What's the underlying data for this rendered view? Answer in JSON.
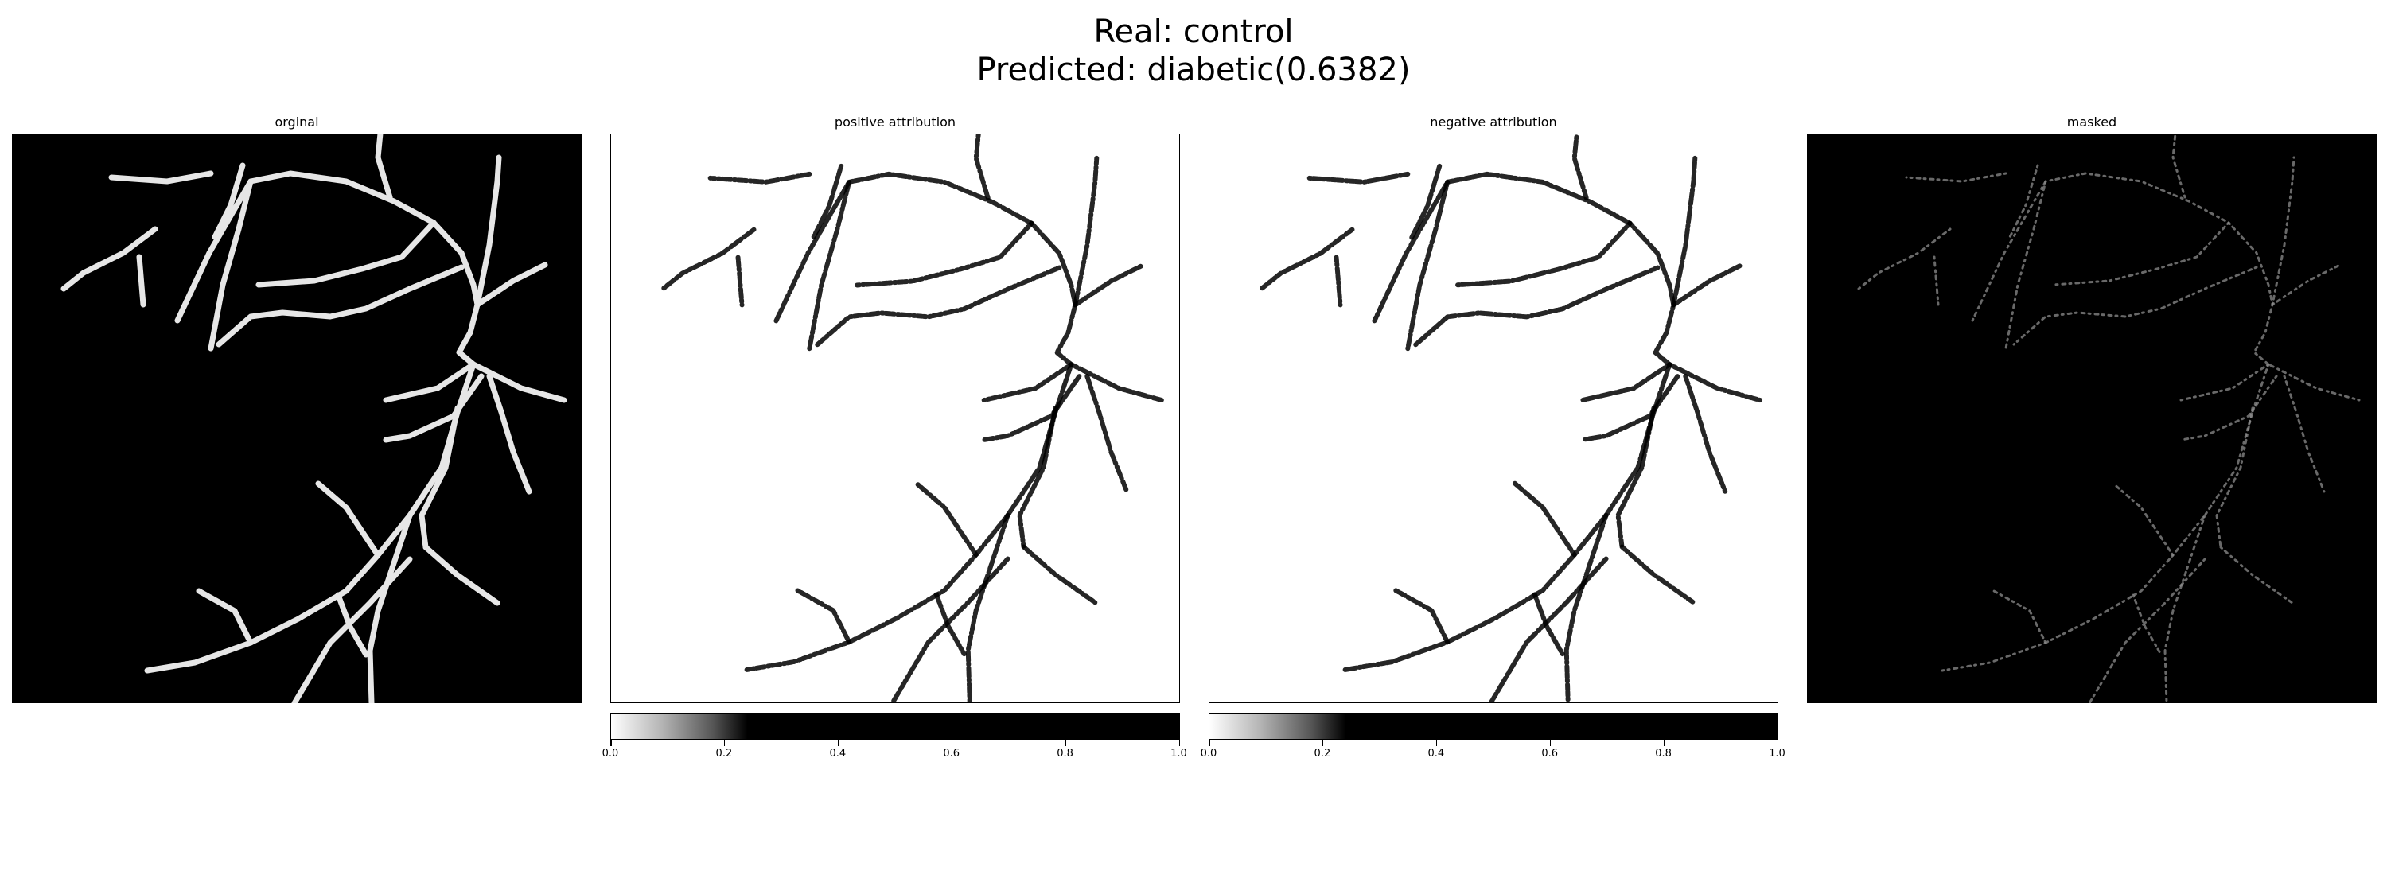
{
  "figure": {
    "suptitle_line1": "Real: control",
    "suptitle_line2": "Predicted: diabetic(0.6382)"
  },
  "panels": [
    {
      "title": "orginal",
      "cmap": "gray",
      "background": "#000000",
      "vessel_color": "#e6e6e6"
    },
    {
      "title": "positive attribution",
      "cmap": "gray_r",
      "background": "#ffffff",
      "vessel_color": "#000000",
      "colorbar": true
    },
    {
      "title": "negative attribution",
      "cmap": "gray_r",
      "background": "#ffffff",
      "vessel_color": "#000000",
      "colorbar": true
    },
    {
      "title": "masked",
      "cmap": "gray",
      "background": "#000000",
      "vessel_color": "#8c8c8c"
    }
  ],
  "colorbar": {
    "range": [
      0.0,
      1.0
    ],
    "tick_labels": [
      "0.0",
      "0.2",
      "0.4",
      "0.6",
      "0.8",
      "1.0"
    ]
  }
}
